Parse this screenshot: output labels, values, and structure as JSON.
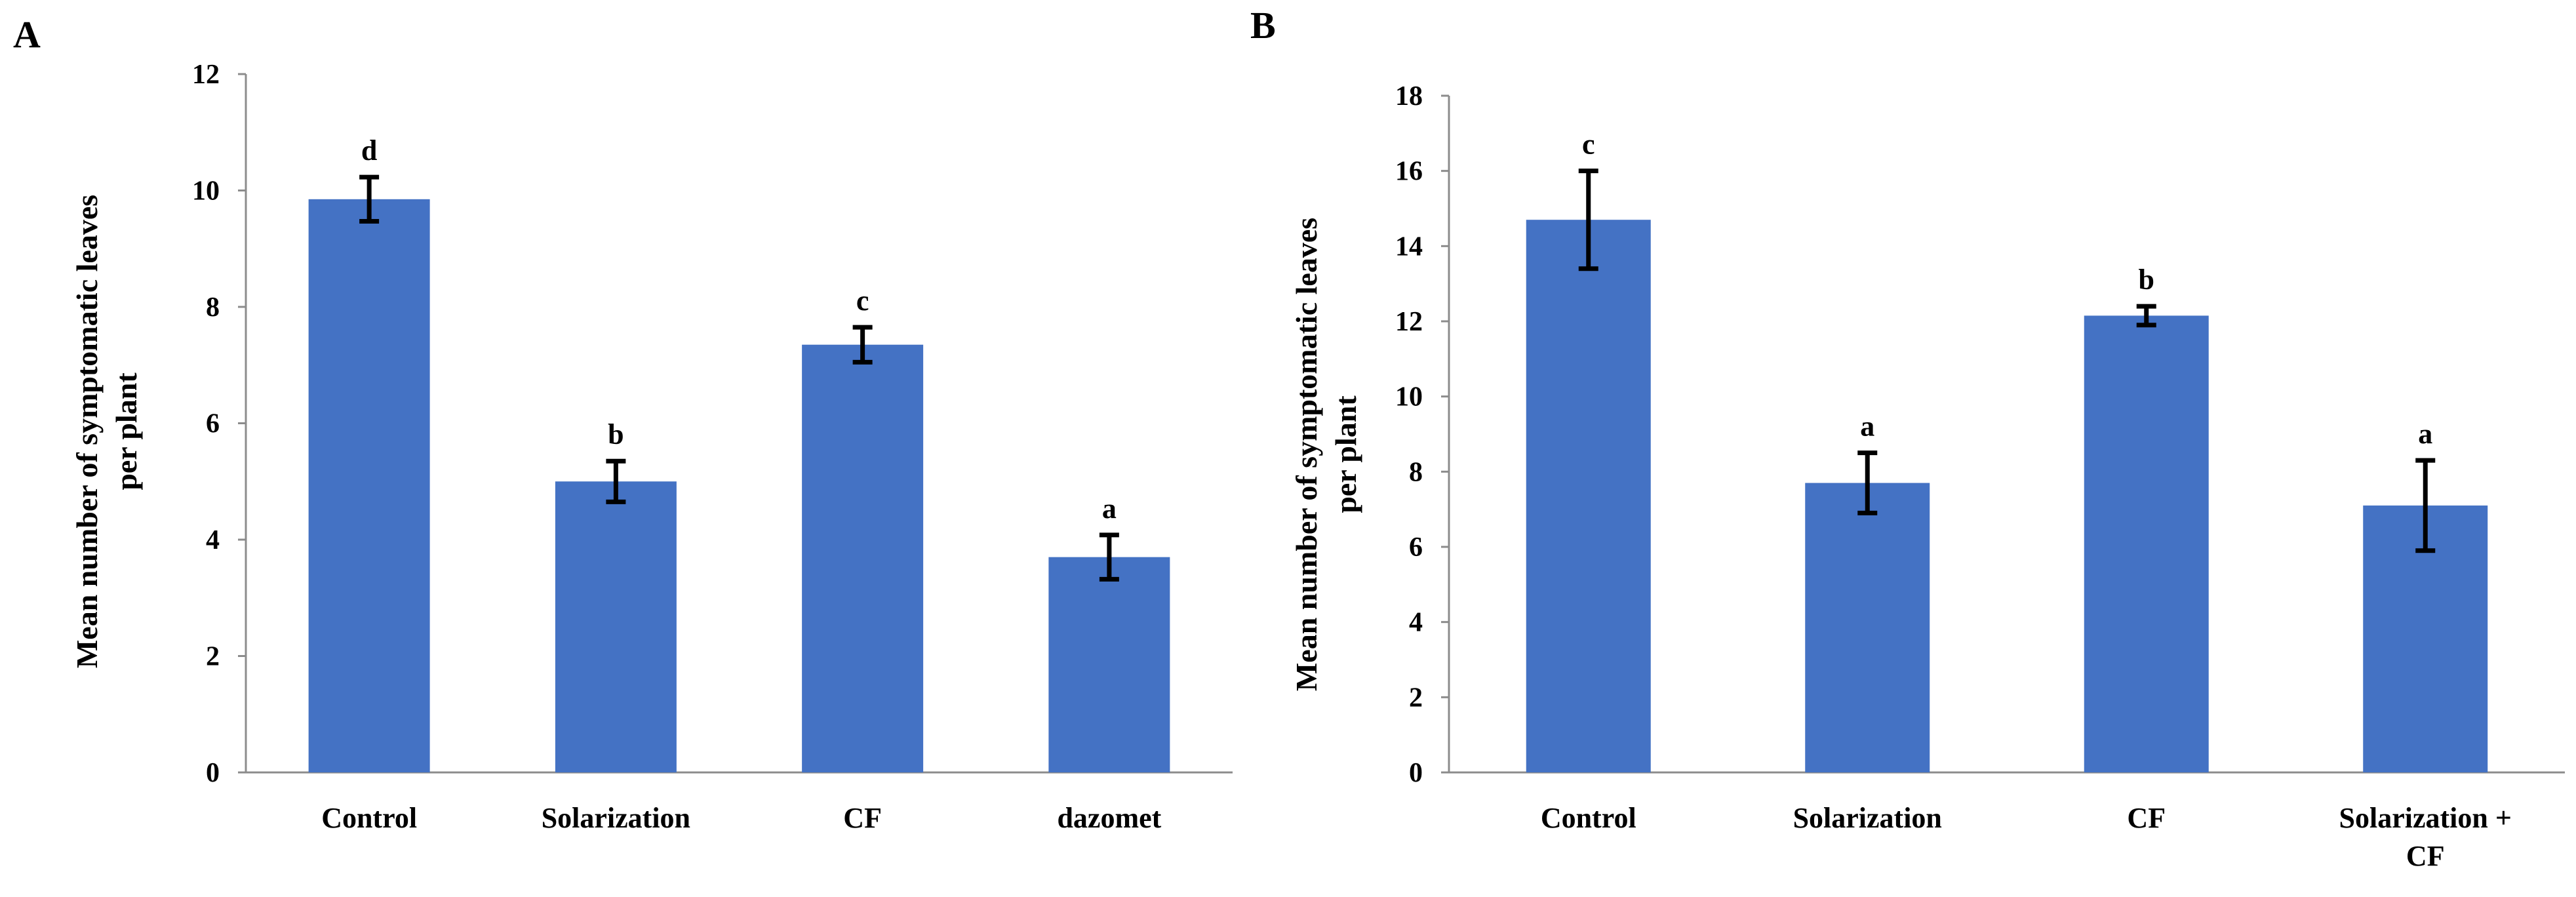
{
  "chart_data": [
    {
      "type": "bar",
      "panel_label": "A",
      "categories": [
        "Control",
        "Solarization",
        "CF",
        "dazomet"
      ],
      "values": [
        9.85,
        5.0,
        7.35,
        3.7
      ],
      "errors": [
        0.38,
        0.35,
        0.3,
        0.38
      ],
      "significance": [
        "d",
        "b",
        "c",
        "a"
      ],
      "ylabel_line1": "Mean number of symptomatic leaves",
      "ylabel_line2": "per plant",
      "xlabel": "",
      "ylim": [
        0,
        12
      ],
      "yticks": [
        0,
        2,
        4,
        6,
        8,
        10,
        12
      ],
      "ytick_labels": [
        "0",
        "2",
        "4",
        "6",
        "8",
        "10",
        "12"
      ],
      "bar_color": "#4472C4",
      "grid": false
    },
    {
      "type": "bar",
      "panel_label": "B",
      "categories": [
        "Control",
        "Solarization",
        "CF",
        "Solarization +"
      ],
      "category_sublabels": [
        "",
        "",
        "",
        "CF"
      ],
      "values": [
        14.7,
        7.7,
        12.15,
        7.1
      ],
      "errors": [
        1.3,
        0.8,
        0.25,
        1.2
      ],
      "significance": [
        "c",
        "a",
        "b",
        "a"
      ],
      "ylabel_line1": "Mean number of symptomatic leaves",
      "ylabel_line2": "per plant",
      "xlabel": "",
      "ylim": [
        0,
        18
      ],
      "yticks": [
        0,
        2,
        4,
        6,
        8,
        10,
        12,
        14,
        16,
        18
      ],
      "ytick_labels": [
        "0",
        "2",
        "4",
        "6",
        "8",
        "10",
        "12",
        "14",
        "16",
        "18"
      ],
      "bar_color": "#4472C4",
      "grid": false
    }
  ]
}
